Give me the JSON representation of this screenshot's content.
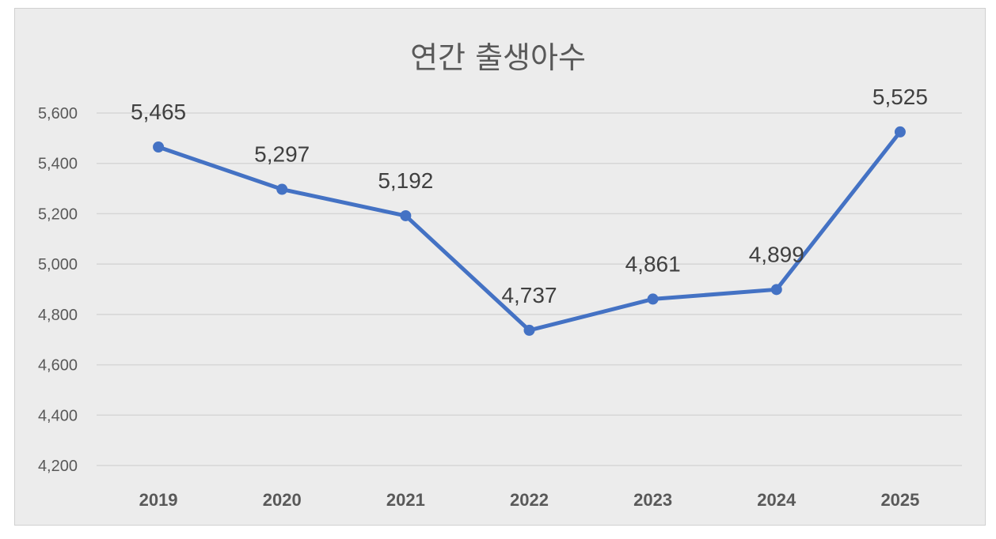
{
  "chart_data": {
    "type": "line",
    "title": "연간 출생아수",
    "xlabel": "",
    "ylabel": "",
    "categories": [
      "2019",
      "2020",
      "2021",
      "2022",
      "2023",
      "2024",
      "2025"
    ],
    "values": [
      5465,
      5297,
      5192,
      4737,
      4861,
      4899,
      5525
    ],
    "data_labels": [
      "5,465",
      "5,297",
      "5,192",
      "4,737",
      "4,861",
      "4,899",
      "5,525"
    ],
    "ylim": [
      4200,
      5600
    ],
    "yticks": [
      4200,
      4400,
      4600,
      4800,
      5000,
      5200,
      5400,
      5600
    ],
    "ytick_labels": [
      "4,200",
      "4,400",
      "4,600",
      "4,800",
      "5,000",
      "5,200",
      "5,400",
      "5,600"
    ],
    "grid": true,
    "legend": "none",
    "series_color": "#4472c4"
  }
}
